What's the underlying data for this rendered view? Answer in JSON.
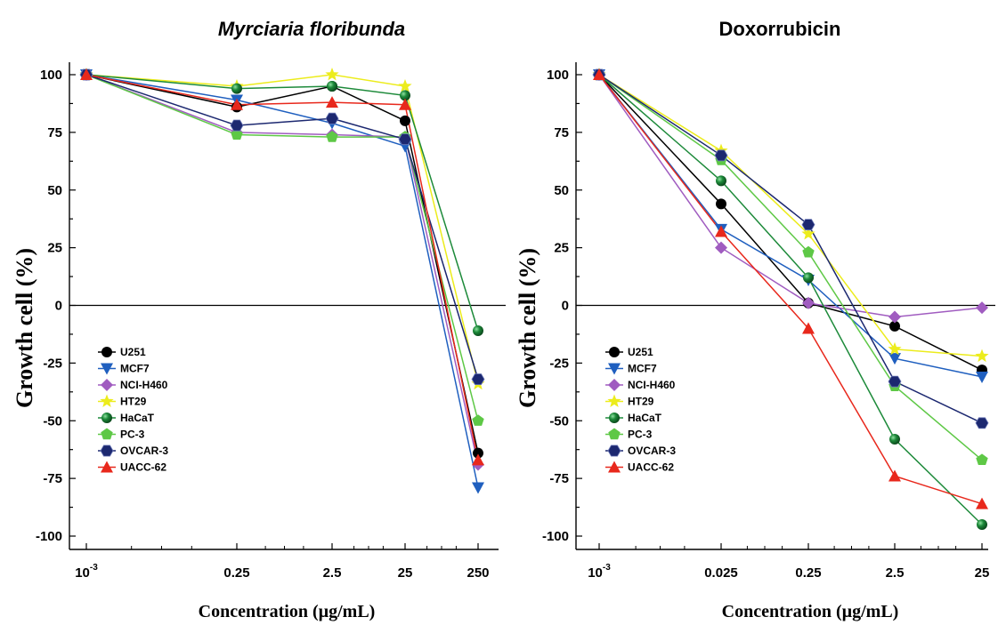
{
  "chart_data": [
    {
      "type": "line",
      "title": "Myrciaria floribunda",
      "ylabel": "Growth cell (%)",
      "xlabel": "Concentration (µg/mL)",
      "x_scale": "log",
      "categories": [
        "10^-3",
        "0.25",
        "2.5",
        "25",
        "250"
      ],
      "x_ticks": [
        {
          "base": "10",
          "exp": "-3"
        },
        {
          "base": "0.25",
          "exp": ""
        },
        {
          "base": "2.5",
          "exp": ""
        },
        {
          "base": "25",
          "exp": ""
        },
        {
          "base": "250",
          "exp": ""
        }
      ],
      "ylim": [
        -105,
        105
      ],
      "y_ticks": [
        "100",
        "75",
        "50",
        "25",
        "0",
        "-25",
        "-50",
        "-75",
        "-100"
      ],
      "legend_position": "lower-left",
      "series": [
        {
          "name": "U251",
          "values": [
            100,
            86,
            95,
            80,
            -64
          ]
        },
        {
          "name": "MCF7",
          "values": [
            100,
            89,
            79,
            69,
            -79
          ]
        },
        {
          "name": "NCI-H460",
          "values": [
            100,
            75,
            74,
            73,
            -69
          ]
        },
        {
          "name": "HT29",
          "values": [
            100,
            95,
            100,
            95,
            -34
          ]
        },
        {
          "name": "HaCaT",
          "values": [
            100,
            94,
            95,
            91,
            -11
          ]
        },
        {
          "name": "PC-3",
          "values": [
            100,
            74,
            73,
            73,
            -50
          ]
        },
        {
          "name": "OVCAR-3",
          "values": [
            100,
            78,
            81,
            72,
            -32
          ]
        },
        {
          "name": "UACC-62",
          "values": [
            100,
            87,
            88,
            87,
            -67
          ]
        }
      ]
    },
    {
      "type": "line",
      "title": "Doxorrubicin",
      "ylabel": "Growth cell (%)",
      "xlabel": "Concentration (µg/mL)",
      "x_scale": "log",
      "categories": [
        "10^-3",
        "0.025",
        "0.25",
        "2.5",
        "25"
      ],
      "x_ticks": [
        {
          "base": "10",
          "exp": "-3"
        },
        {
          "base": "0.025",
          "exp": ""
        },
        {
          "base": "0.25",
          "exp": ""
        },
        {
          "base": "2.5",
          "exp": ""
        },
        {
          "base": "25",
          "exp": ""
        }
      ],
      "ylim": [
        -105,
        105
      ],
      "y_ticks": [
        "100",
        "75",
        "50",
        "25",
        "0",
        "-25",
        "-50",
        "-75",
        "-100"
      ],
      "legend_position": "lower-left",
      "series": [
        {
          "name": "U251",
          "values": [
            100,
            44,
            1,
            -9,
            -28
          ]
        },
        {
          "name": "MCF7",
          "values": [
            100,
            33,
            11,
            -23,
            -31
          ]
        },
        {
          "name": "NCI-H460",
          "values": [
            100,
            25,
            1,
            -5,
            -1
          ]
        },
        {
          "name": "HT29",
          "values": [
            100,
            67,
            31,
            -19,
            -22
          ]
        },
        {
          "name": "HaCaT",
          "values": [
            100,
            54,
            12,
            -58,
            -95
          ]
        },
        {
          "name": "PC-3",
          "values": [
            100,
            63,
            23,
            -35,
            -67
          ]
        },
        {
          "name": "OVCAR-3",
          "values": [
            100,
            65,
            35,
            -33,
            -51
          ]
        },
        {
          "name": "UACC-62",
          "values": [
            100,
            32,
            -10,
            -74,
            -86
          ]
        }
      ]
    }
  ],
  "series_styles": [
    {
      "color": "#000000",
      "marker": "circle"
    },
    {
      "color": "#1f5fbf",
      "marker": "triangle-down"
    },
    {
      "color": "#a05cc0",
      "marker": "diamond"
    },
    {
      "color": "#ecec1c",
      "marker": "star"
    },
    {
      "color": "#1d8a3a",
      "marker": "sphere"
    },
    {
      "color": "#5ec846",
      "marker": "pentagon"
    },
    {
      "color": "#1c2870",
      "marker": "hexagon"
    },
    {
      "color": "#e8281c",
      "marker": "triangle-up"
    }
  ]
}
